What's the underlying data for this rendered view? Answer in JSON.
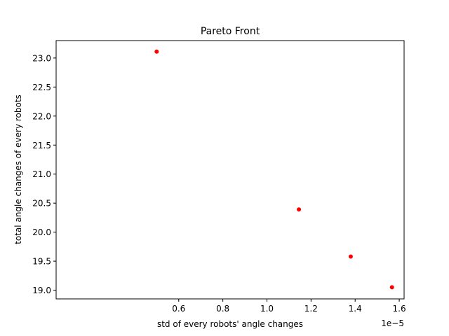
{
  "chart_data": {
    "type": "scatter",
    "title": "Pareto Front",
    "xlabel": "std of every robots' angle changes",
    "ylabel": "total angle changes of every robots",
    "x_offset_label": "1e−5",
    "xlim": [
      4.4e-07,
      1.622e-05
    ],
    "ylim": [
      18.85,
      23.3
    ],
    "x_ticks": [
      {
        "value": 6e-06,
        "label": "0.6"
      },
      {
        "value": 8e-06,
        "label": "0.8"
      },
      {
        "value": 1e-05,
        "label": "1.0"
      },
      {
        "value": 1.2e-05,
        "label": "1.2"
      },
      {
        "value": 1.4e-05,
        "label": "1.4"
      },
      {
        "value": 1.6e-05,
        "label": "1.6"
      }
    ],
    "y_ticks": [
      {
        "value": 19.0,
        "label": "19.0"
      },
      {
        "value": 19.5,
        "label": "19.5"
      },
      {
        "value": 20.0,
        "label": "20.0"
      },
      {
        "value": 20.5,
        "label": "20.5"
      },
      {
        "value": 21.0,
        "label": "21.0"
      },
      {
        "value": 21.5,
        "label": "21.5"
      },
      {
        "value": 22.0,
        "label": "22.0"
      },
      {
        "value": 22.5,
        "label": "22.5"
      },
      {
        "value": 23.0,
        "label": "23.0"
      }
    ],
    "grid": false,
    "marker_color": "#ff0000",
    "points": [
      {
        "x": 5e-06,
        "y": 23.11
      },
      {
        "x": 1.145e-05,
        "y": 20.39
      },
      {
        "x": 1.38e-05,
        "y": 19.58
      },
      {
        "x": 1.567e-05,
        "y": 19.05
      }
    ]
  }
}
